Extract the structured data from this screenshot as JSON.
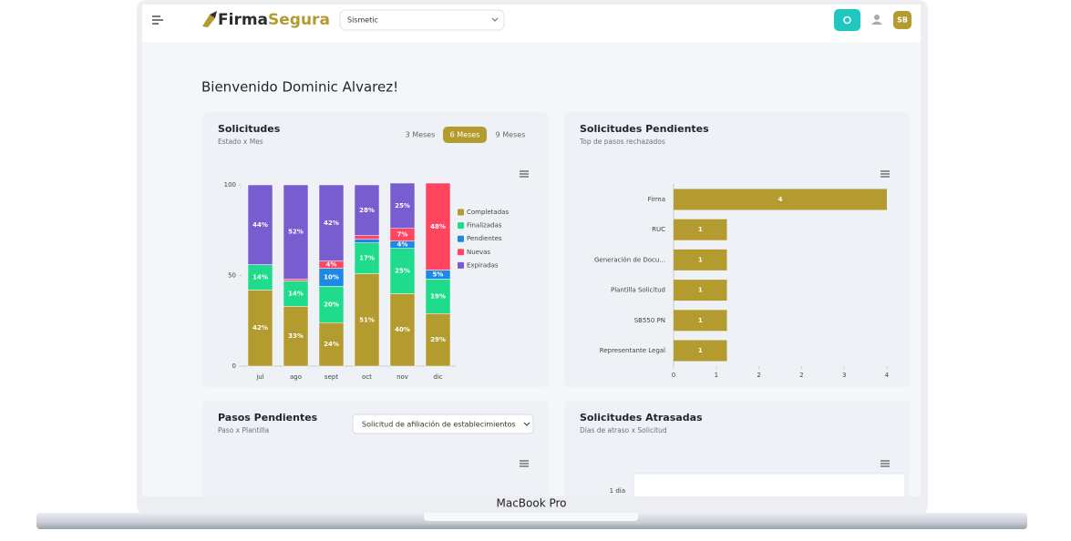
{
  "header": {
    "logo_part1": "Firma",
    "logo_part2": "Segura",
    "company": "Sismetic",
    "user_initials": "SB"
  },
  "welcome": "Bienvenido Dominic Alvarez!",
  "solicitudes": {
    "title": "Solicitudes",
    "subtitle": "Estado x Mes",
    "tabs": [
      "3 Meses",
      "6 Meses",
      "9 Meses"
    ],
    "active_tab": 1,
    "chart": {
      "type": "stacked_bar",
      "categories": [
        "jul",
        "ago",
        "sept",
        "oct",
        "nov",
        "dic"
      ],
      "ylim": [
        0,
        100
      ],
      "yticks": [
        0,
        50,
        100
      ],
      "series": [
        {
          "name": "Completadas",
          "color": "#b39b2f",
          "values": [
            42,
            33,
            24,
            51,
            40,
            29
          ],
          "value_labels": [
            "42%",
            "33%",
            "24%",
            "51%",
            "40%",
            "29%"
          ]
        },
        {
          "name": "Finalizadas",
          "color": "#1fdc8c",
          "values": [
            14,
            14,
            20,
            17,
            25,
            19
          ],
          "value_labels": [
            "14%",
            "14%",
            "20%",
            "17%",
            "25%",
            "19%"
          ]
        },
        {
          "name": "Pendientes",
          "color": "#1e88e5",
          "values": [
            0,
            0,
            10,
            2,
            4,
            5
          ],
          "value_labels": [
            null,
            null,
            "10%",
            null,
            "4%",
            "5%"
          ]
        },
        {
          "name": "Nuevas",
          "color": "#ff4560",
          "values": [
            0,
            1,
            4,
            2,
            7,
            48
          ],
          "value_labels": [
            null,
            null,
            "4%",
            null,
            "7%",
            "48%"
          ]
        },
        {
          "name": "Expiradas",
          "color": "#775dd0",
          "values": [
            44,
            52,
            42,
            28,
            25,
            0
          ],
          "value_labels": [
            "44%",
            "52%",
            "42%",
            "28%",
            "25%",
            null
          ]
        }
      ]
    }
  },
  "pendientes": {
    "title": "Solicitudes Pendientes",
    "subtitle": "Top de pasos rechazados",
    "chart": {
      "type": "hbar",
      "color": "#b39b2f",
      "categories": [
        "Firma",
        "RUC",
        "Generación de Docu...",
        "Plantilla Solicitud",
        "SB550 PN",
        "Representante Legal"
      ],
      "values": [
        4,
        1,
        1,
        1,
        1,
        1
      ],
      "xlim": [
        0,
        4
      ],
      "xticks": [
        0,
        {
          "value": 0.8,
          "label": "1"
        },
        {
          "value": 1.6,
          "label": "2"
        },
        {
          "value": 2.4,
          "label": "2"
        },
        {
          "value": 3.2,
          "label": "3"
        },
        4
      ]
    }
  },
  "pasos": {
    "title": "Pasos Pendientes",
    "subtitle": "Paso x Plantilla",
    "select": "Solicitud de afiliación de establecimientos"
  },
  "atrasadas": {
    "title": "Solicitudes Atrasadas",
    "subtitle": "Días de atraso x Solicitud",
    "categories": [
      "1 día"
    ]
  },
  "device_label": "MacBook Pro"
}
